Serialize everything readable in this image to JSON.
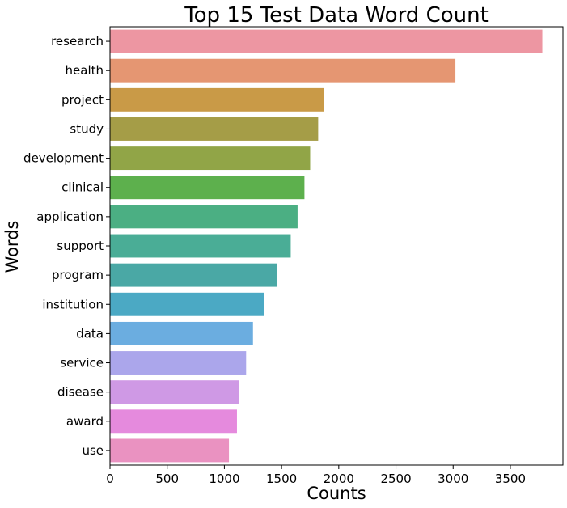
{
  "chart_data": {
    "type": "bar",
    "orientation": "horizontal",
    "title": "Top 15 Test Data Word Count",
    "xlabel": "Counts",
    "ylabel": "Words",
    "categories": [
      "research",
      "health",
      "project",
      "study",
      "development",
      "clinical",
      "application",
      "support",
      "program",
      "institution",
      "data",
      "service",
      "disease",
      "award",
      "use"
    ],
    "values": [
      3780,
      3020,
      1870,
      1820,
      1750,
      1700,
      1640,
      1580,
      1460,
      1350,
      1250,
      1190,
      1130,
      1110,
      1040
    ],
    "colors": [
      "#ED96A2",
      "#E59672",
      "#C99A47",
      "#A59D47",
      "#91A547",
      "#5DB04D",
      "#4BAF83",
      "#4AAD96",
      "#4AA8A5",
      "#4BA9C4",
      "#6BADE0",
      "#ABA6EB",
      "#CF99E5",
      "#E58ADD",
      "#EA92C1"
    ],
    "xlim": [
      0,
      3960
    ],
    "xticks": [
      0,
      500,
      1000,
      1500,
      2000,
      2500,
      3000,
      3500
    ],
    "grid": false,
    "legend": "none"
  }
}
